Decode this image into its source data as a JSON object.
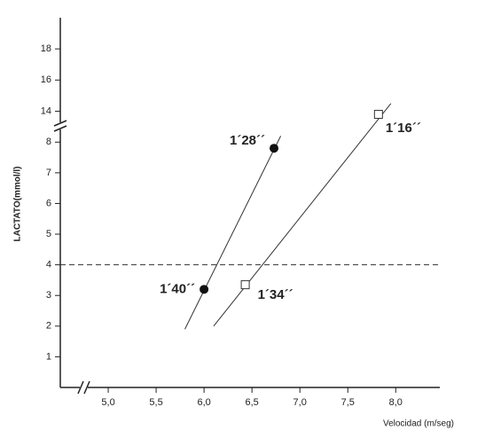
{
  "chart_data": {
    "type": "scatter",
    "xlabel": "Velocidad (m/seg)",
    "ylabel": "LACTATO(mmol/l)",
    "xlim": [
      4.5,
      8.46
    ],
    "ylim": [
      0,
      20
    ],
    "ybreak": [
      8.5,
      13
    ],
    "xticks": [
      {
        "value": 5.0,
        "label": "5,0"
      },
      {
        "value": 5.5,
        "label": "5,5"
      },
      {
        "value": 6.0,
        "label": "6,0"
      },
      {
        "value": 6.5,
        "label": "6,5"
      },
      {
        "value": 7.0,
        "label": "7,0"
      },
      {
        "value": 7.5,
        "label": "7,5"
      },
      {
        "value": 8.0,
        "label": "8,0"
      }
    ],
    "yticks": [
      1,
      2,
      3,
      4,
      5,
      6,
      7,
      8,
      14,
      16,
      18
    ],
    "hline": 4,
    "points": [
      {
        "x": 6.0,
        "y": 3.2,
        "label": "1´40´´",
        "marker": "circle"
      },
      {
        "x": 6.73,
        "y": 7.8,
        "label": "1´28´´",
        "marker": "circle"
      },
      {
        "x": 6.43,
        "y": 3.35,
        "label": "1´34´´",
        "marker": "square"
      },
      {
        "x": 7.82,
        "y": 13.8,
        "label": "1´16´´",
        "marker": "square"
      }
    ],
    "fits": [
      {
        "x": [
          5.8,
          6.8
        ],
        "values": [
          1.9,
          8.2
        ]
      },
      {
        "x": [
          6.1,
          7.95
        ],
        "values": [
          2.0,
          14.5
        ]
      }
    ]
  }
}
